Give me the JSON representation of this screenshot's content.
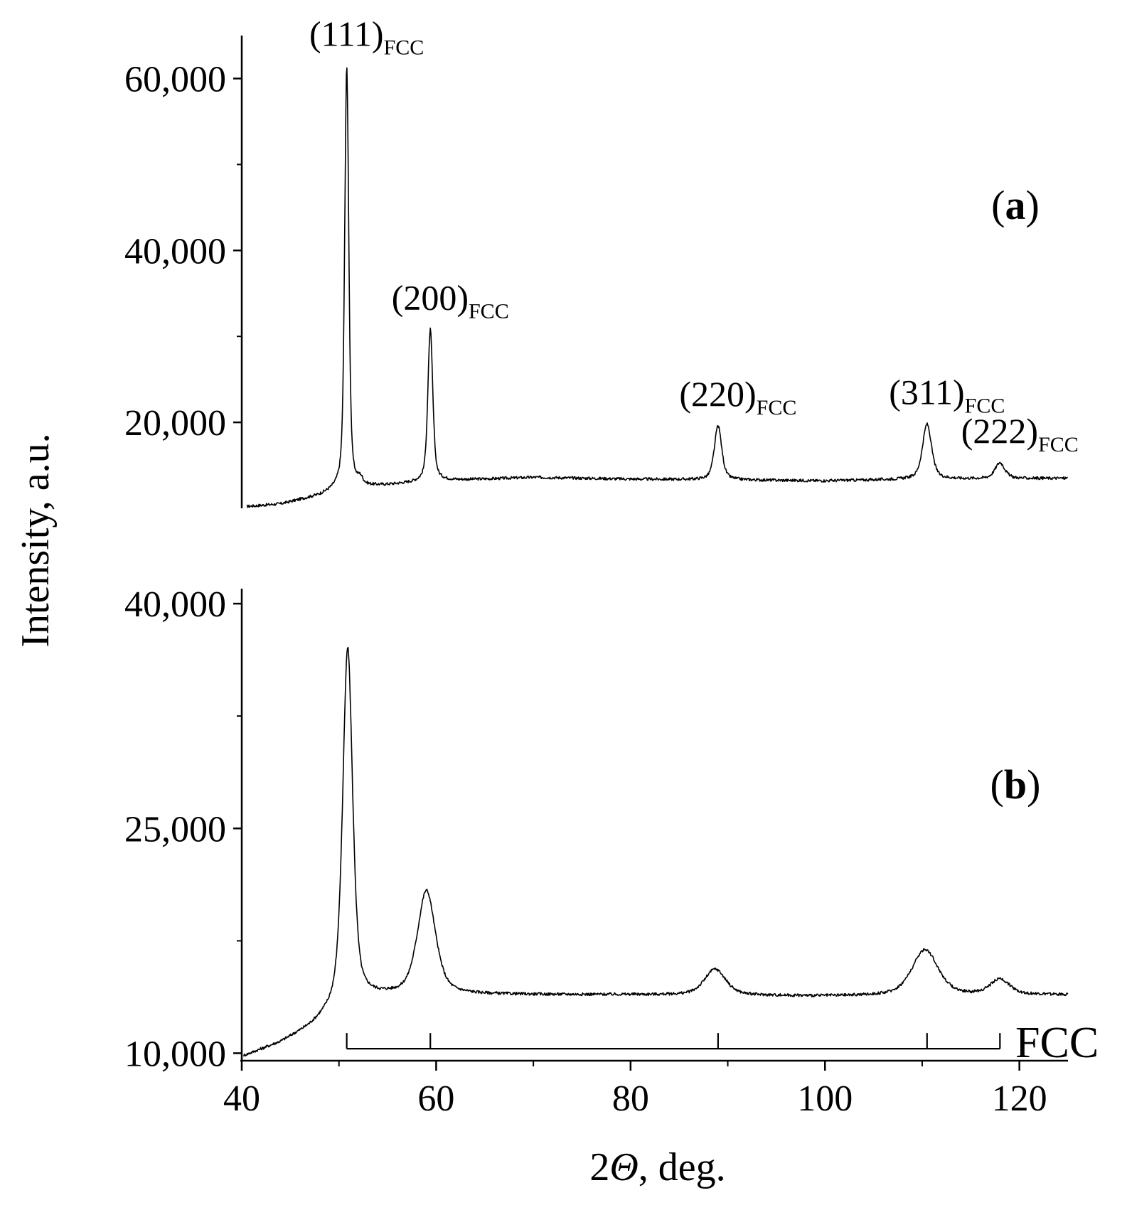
{
  "chart_data": {
    "type": "line",
    "xlabel": {
      "prefix": "2",
      "theta": "Θ",
      "suffix": ", deg."
    },
    "ylabel": "Intensity, a.u.",
    "xlim": [
      40,
      125
    ],
    "xticks": [
      {
        "value": 40,
        "label": "40"
      },
      {
        "value": 60,
        "label": "60"
      },
      {
        "value": 80,
        "label": "80"
      },
      {
        "value": 100,
        "label": "100"
      },
      {
        "value": 120,
        "label": "120"
      }
    ],
    "panels": [
      {
        "id": "a",
        "label_open": "(",
        "label_letter": "a",
        "label_close": ")",
        "ylim": [
          10000,
          65000
        ],
        "yticks": [
          {
            "value": 20000,
            "label": "20,000"
          },
          {
            "value": 40000,
            "label": "40,000"
          },
          {
            "value": 60000,
            "label": "60,000"
          }
        ],
        "baseline": [
          [
            40.5,
            10200
          ],
          [
            44,
            10500
          ],
          [
            48,
            11500
          ],
          [
            50,
            12300
          ],
          [
            55,
            12700
          ],
          [
            60,
            13200
          ],
          [
            70,
            13600
          ],
          [
            80,
            13400
          ],
          [
            90,
            13300
          ],
          [
            100,
            13200
          ],
          [
            110,
            13400
          ],
          [
            125,
            13500
          ]
        ],
        "peaks": [
          {
            "x": 50.8,
            "y": 61500,
            "w": 0.25,
            "label": "(111)",
            "sub": "FCC"
          },
          {
            "x": 52.2,
            "y": 13200,
            "w": 0.3,
            "label": "",
            "sub": ""
          },
          {
            "x": 59.4,
            "y": 30800,
            "w": 0.3,
            "label": "(200)",
            "sub": "FCC"
          },
          {
            "x": 89.0,
            "y": 19600,
            "w": 0.45,
            "label": "(220)",
            "sub": "FCC"
          },
          {
            "x": 110.5,
            "y": 19800,
            "w": 0.55,
            "label": "(311)",
            "sub": "FCC"
          },
          {
            "x": 118.0,
            "y": 15300,
            "w": 0.6,
            "label": "(222)",
            "sub": "FCC"
          }
        ]
      },
      {
        "id": "b",
        "label_open": "(",
        "label_letter": "b",
        "label_close": ")",
        "ylim": [
          9500,
          41000
        ],
        "yticks": [
          {
            "value": 10000,
            "label": "10,000"
          },
          {
            "value": 25000,
            "label": "25,000"
          },
          {
            "value": 40000,
            "label": "40,000"
          }
        ],
        "baseline": [
          [
            40.2,
            9800
          ],
          [
            44,
            10700
          ],
          [
            47,
            11700
          ],
          [
            49,
            12600
          ],
          [
            50.5,
            13500
          ],
          [
            55,
            13800
          ],
          [
            60,
            13900
          ],
          [
            80,
            13900
          ],
          [
            100,
            13800
          ],
          [
            125,
            13900
          ]
        ],
        "peaks": [
          {
            "x": 50.9,
            "y": 37000,
            "w": 0.6,
            "label": "",
            "sub": ""
          },
          {
            "x": 59.0,
            "y": 20800,
            "w": 1.1,
            "label": "",
            "sub": ""
          },
          {
            "x": 88.7,
            "y": 15600,
            "w": 1.3,
            "label": "",
            "sub": ""
          },
          {
            "x": 110.3,
            "y": 16900,
            "w": 1.6,
            "label": "",
            "sub": ""
          },
          {
            "x": 118.0,
            "y": 14900,
            "w": 1.2,
            "label": "",
            "sub": ""
          }
        ]
      }
    ],
    "reference": {
      "label": "FCC",
      "y": 10300,
      "positions": [
        50.8,
        59.4,
        89.0,
        110.5,
        118.0
      ]
    }
  }
}
